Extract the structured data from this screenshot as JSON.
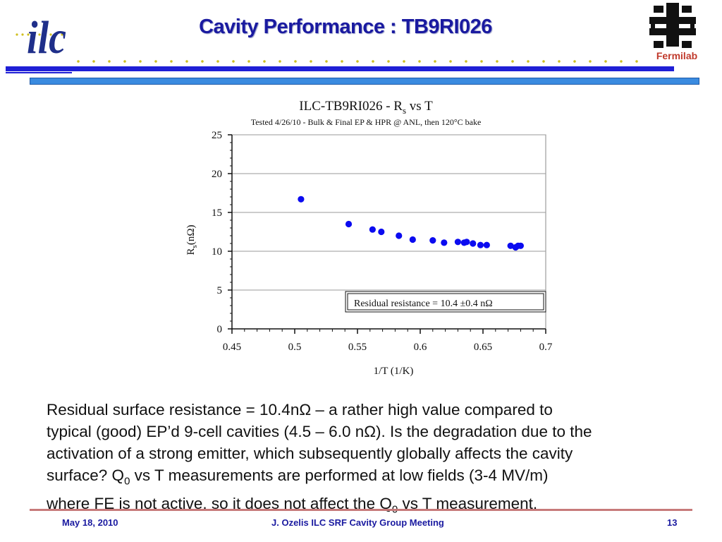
{
  "header": {
    "title": "Cavity Performance : TB9RI026",
    "fermilab_label": "Fermilab",
    "ilc_logo_text": "ilc"
  },
  "colors": {
    "title": "#1a1aa0",
    "header_bar": "#1f1fd6",
    "thin_bar": "#3a8be0",
    "dots": "#cfc020",
    "data_points": "#0b0bf0",
    "footer_rule": "#c77a7a"
  },
  "chart_data": {
    "type": "scatter",
    "title_parts": [
      "ILC-TB9RI026 - R",
      "s",
      " vs T"
    ],
    "subtitle": "Tested 4/26/10 - Bulk & Final EP & HPR @ ANL,  then 120°C bake",
    "xlabel": "1/T (1/K)",
    "ylabel_parts": [
      "R",
      "s",
      "(nΩ)"
    ],
    "xlim": [
      0.45,
      0.7
    ],
    "ylim": [
      0,
      25
    ],
    "xticks": [
      "0.45",
      "0.5",
      "0.55",
      "0.6",
      "0.65",
      "0.7"
    ],
    "yticks": [
      "0",
      "5",
      "10",
      "15",
      "20",
      "25"
    ],
    "grid": "horizontal",
    "annotation": "Residual resistance  = 10.4 ±0.4 nΩ",
    "x": [
      0.505,
      0.543,
      0.562,
      0.569,
      0.583,
      0.594,
      0.61,
      0.619,
      0.63,
      0.635,
      0.637,
      0.642,
      0.648,
      0.653,
      0.672,
      0.676,
      0.678,
      0.68
    ],
    "y": [
      16.7,
      13.5,
      12.8,
      12.5,
      12.0,
      11.5,
      11.4,
      11.1,
      11.2,
      11.1,
      11.2,
      11.0,
      10.8,
      10.8,
      10.7,
      10.5,
      10.7,
      10.7
    ]
  },
  "body": {
    "line1": "Residual surface resistance  = 10.4nΩ – a rather high value compared to",
    "line2": "typical (good) EP’d 9-cell cavities (4.5 – 6.0 nΩ). Is the degradation due to the",
    "line3": "activation of a strong emitter, which subsequently globally affects the cavity",
    "line4a": "surface?  Q",
    "line4sub": "0",
    "line4b": " vs T measurements are performed at low fields (3-4 MV/m)",
    "line5a": "where FE is not active, so it does not affect the Q",
    "line5sub": "0",
    "line5b": " vs T measurement."
  },
  "footer": {
    "date": "May 18,  2010",
    "center": "J. Ozelis  ILC SRF Cavity Group Meeting",
    "page": "13"
  }
}
